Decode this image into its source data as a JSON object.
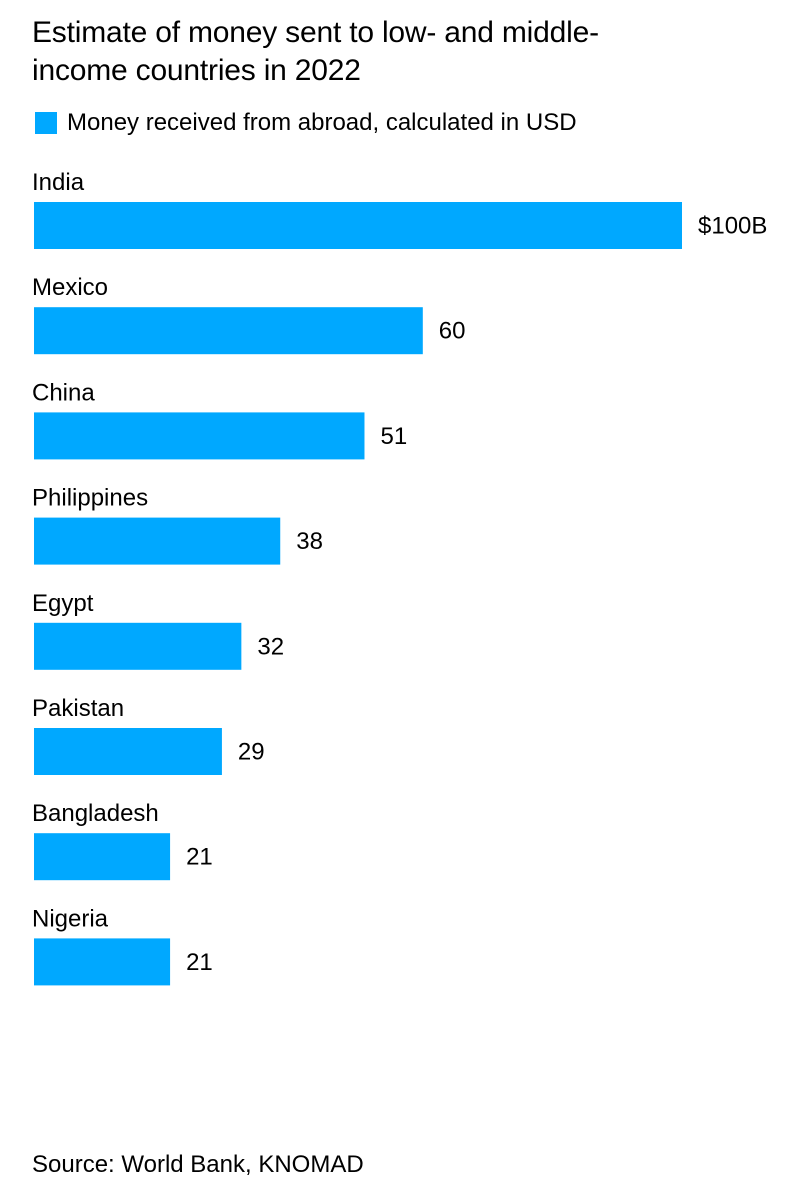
{
  "chart_data": {
    "type": "bar",
    "orientation": "horizontal",
    "title": "Estimate of money sent to low- and middle-income countries in 2022",
    "legend": [
      {
        "label": "Money received from abroad, calculated in USD",
        "color": "#00a8ff"
      }
    ],
    "legend_placement": "top-left",
    "categories": [
      "India",
      "Mexico",
      "China",
      "Philippines",
      "Egypt",
      "Pakistan",
      "Bangladesh",
      "Nigeria"
    ],
    "series": [
      {
        "name": "Money received from abroad, calculated in USD",
        "color": "#00a8ff",
        "values": [
          100,
          60,
          51,
          38,
          32,
          29,
          21,
          21
        ],
        "value_labels": [
          "$100B",
          "60",
          "51",
          "38",
          "32",
          "29",
          "21",
          "21"
        ]
      }
    ],
    "xlim": [
      0,
      100
    ],
    "grid": false,
    "source": "Source: World Bank, KNOMAD"
  }
}
